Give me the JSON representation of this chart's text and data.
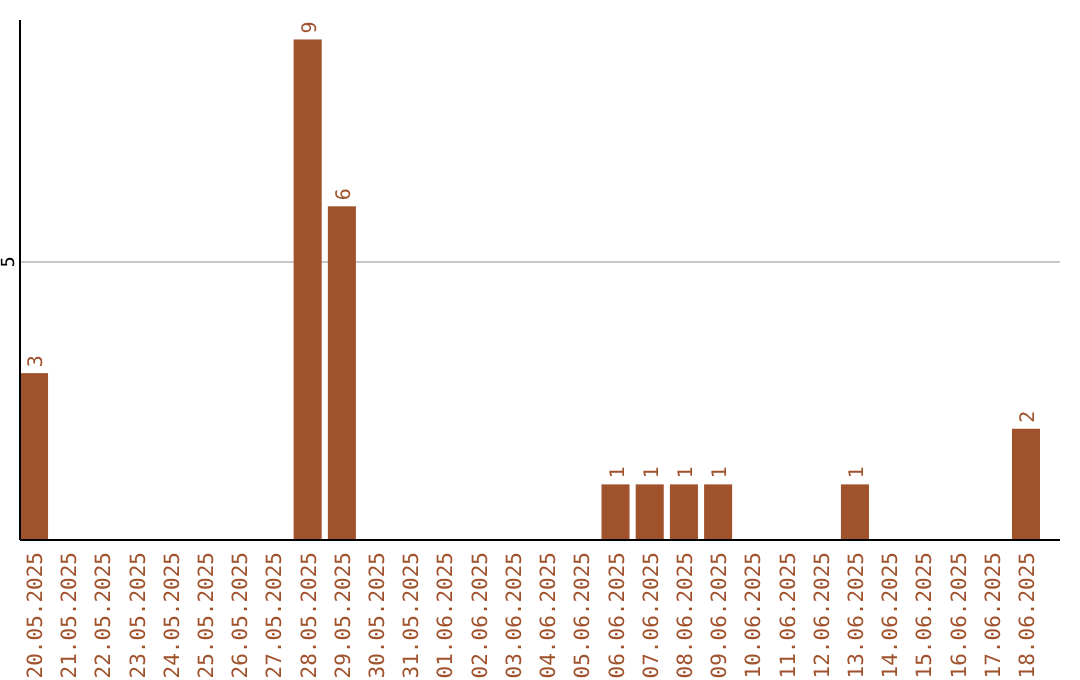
{
  "chart_data": {
    "type": "bar",
    "categories": [
      "20.05.2025",
      "21.05.2025",
      "22.05.2025",
      "23.05.2025",
      "24.05.2025",
      "25.05.2025",
      "26.05.2025",
      "27.05.2025",
      "28.05.2025",
      "29.05.2025",
      "30.05.2025",
      "31.05.2025",
      "01.06.2025",
      "02.06.2025",
      "03.06.2025",
      "04.06.2025",
      "05.06.2025",
      "06.06.2025",
      "07.06.2025",
      "08.06.2025",
      "09.06.2025",
      "10.06.2025",
      "11.06.2025",
      "12.06.2025",
      "13.06.2025",
      "14.06.2025",
      "15.06.2025",
      "16.06.2025",
      "17.06.2025",
      "18.06.2025"
    ],
    "values": [
      3,
      0,
      0,
      0,
      0,
      0,
      0,
      0,
      9,
      6,
      0,
      0,
      0,
      0,
      0,
      0,
      0,
      1,
      1,
      1,
      1,
      0,
      0,
      0,
      1,
      0,
      0,
      0,
      0,
      2
    ],
    "value_labels": [
      "3",
      null,
      null,
      null,
      null,
      null,
      null,
      null,
      "9",
      "6",
      null,
      null,
      null,
      null,
      null,
      null,
      null,
      "1",
      "1",
      "1",
      "1",
      null,
      null,
      null,
      "1",
      null,
      null,
      null,
      null,
      "2"
    ],
    "color": "#a0522d",
    "ylim": [
      0,
      9.35
    ],
    "yticks": [
      5
    ],
    "grid": "y"
  }
}
